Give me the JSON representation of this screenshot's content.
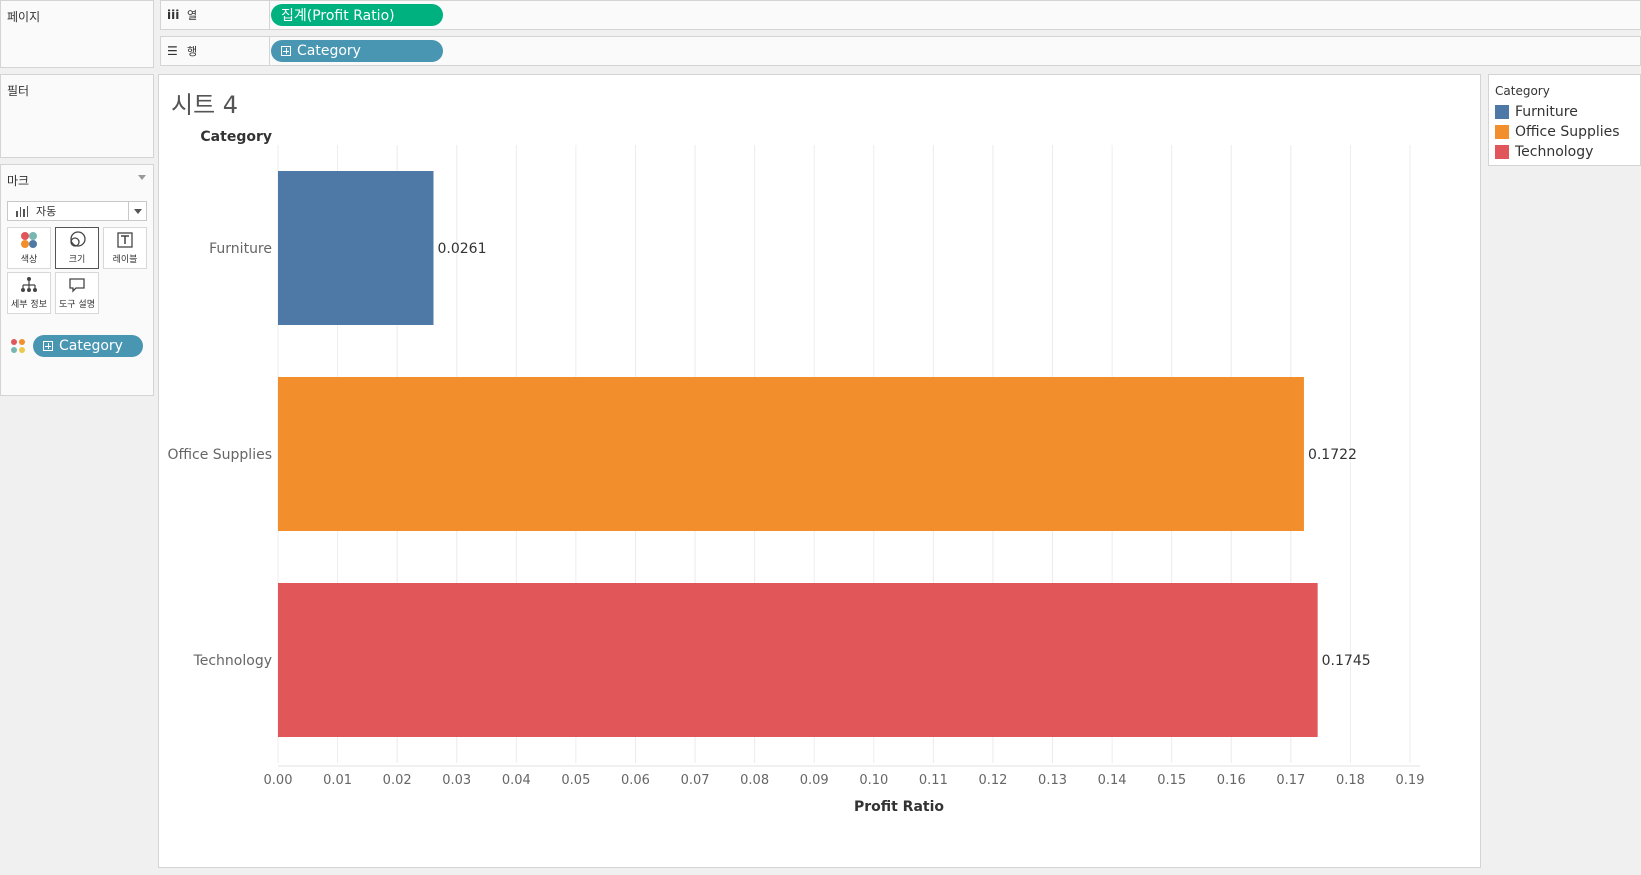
{
  "panels": {
    "pages_title": "페이지",
    "filters_title": "필터",
    "marks_title": "마크"
  },
  "shelves": {
    "columns_label": "열",
    "rows_label": "행",
    "columns_pill": "집계(Profit Ratio)",
    "rows_pill": "Category"
  },
  "marks": {
    "type_label": "자동",
    "buttons": [
      {
        "label": "색상",
        "icon": "color-icon"
      },
      {
        "label": "크기",
        "icon": "size-icon"
      },
      {
        "label": "레이블",
        "icon": "label-icon"
      },
      {
        "label": "세부 정보",
        "icon": "detail-icon"
      },
      {
        "label": "도구 설명",
        "icon": "tooltip-icon"
      }
    ],
    "color_pill": "Category"
  },
  "sheet": {
    "title": "시트 4"
  },
  "legend": {
    "title": "Category",
    "items": [
      {
        "label": "Furniture",
        "color": "#4e79a7"
      },
      {
        "label": "Office Supplies",
        "color": "#f28e2b"
      },
      {
        "label": "Technology",
        "color": "#e15759"
      }
    ]
  },
  "chart_data": {
    "type": "bar",
    "orientation": "horizontal",
    "row_header": "Category",
    "categories": [
      "Furniture",
      "Office Supplies",
      "Technology"
    ],
    "values": [
      0.0261,
      0.1722,
      0.1745
    ],
    "data_labels": [
      "0.0261",
      "0.1722",
      "0.1745"
    ],
    "colors": [
      "#4e79a7",
      "#f28e2b",
      "#e15759"
    ],
    "xlabel": "Profit Ratio",
    "xlim": [
      0,
      0.19
    ],
    "x_ticks": [
      "0.00",
      "0.01",
      "0.02",
      "0.03",
      "0.04",
      "0.05",
      "0.06",
      "0.07",
      "0.08",
      "0.09",
      "0.10",
      "0.11",
      "0.12",
      "0.13",
      "0.14",
      "0.15",
      "0.16",
      "0.17",
      "0.18",
      "0.19"
    ],
    "grid": true
  }
}
